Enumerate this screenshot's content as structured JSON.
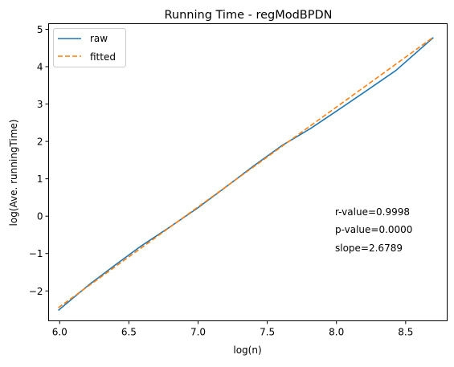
{
  "chart_data": {
    "type": "line",
    "title": "Running Time - regModBPDN",
    "xlabel": "log(n)",
    "ylabel": "log(Ave. runningTime)",
    "xlim": [
      5.92,
      8.8
    ],
    "ylim": [
      -2.8,
      5.15
    ],
    "xticks": [
      6.0,
      6.5,
      7.0,
      7.5,
      8.0,
      8.5
    ],
    "xtick_labels": [
      "6.0",
      "6.5",
      "7.0",
      "7.5",
      "8.0",
      "8.5"
    ],
    "yticks": [
      -2,
      -1,
      0,
      1,
      2,
      3,
      4,
      5
    ],
    "ytick_labels": [
      "−2",
      "−1",
      "0",
      "1",
      "2",
      "3",
      "4",
      "5"
    ],
    "grid": false,
    "legend_position": "top-left",
    "series": [
      {
        "name": "raw",
        "color": "#1f77b4",
        "style": "solid",
        "x": [
          5.99,
          6.21,
          6.4,
          6.58,
          6.78,
          6.99,
          7.19,
          7.4,
          7.61,
          7.81,
          8.02,
          8.23,
          8.43,
          8.7
        ],
        "y": [
          -2.52,
          -1.84,
          -1.31,
          -0.82,
          -0.33,
          0.2,
          0.75,
          1.34,
          1.9,
          2.34,
          2.86,
          3.39,
          3.9,
          4.78
        ]
      },
      {
        "name": "fitted",
        "color": "#ff7f0e",
        "style": "dashed",
        "x": [
          5.99,
          8.7
        ],
        "y": [
          -2.45,
          4.79
        ]
      }
    ],
    "annotations": [
      "r-value=0.9998",
      "p-value=0.0000",
      "slope=2.6789"
    ]
  }
}
